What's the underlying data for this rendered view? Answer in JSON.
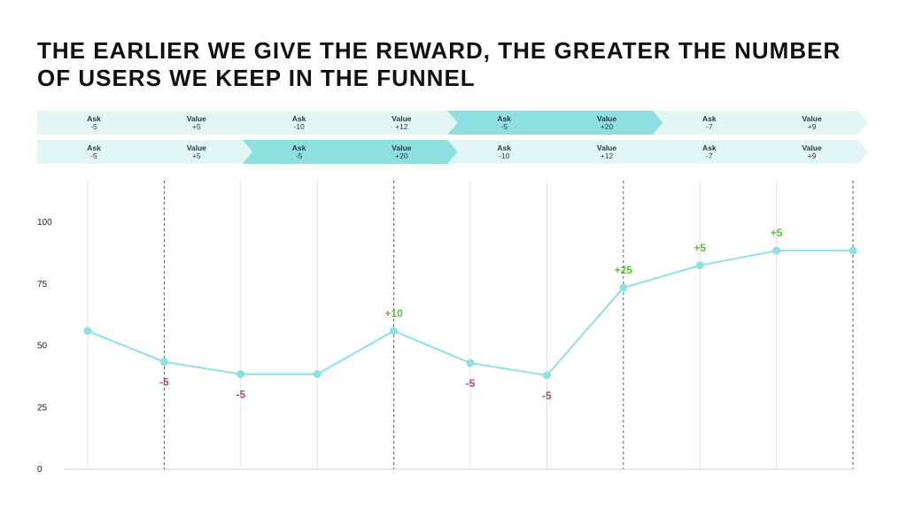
{
  "title_lines": [
    "THE EARLIER WE GIVE THE REWARD, THE GREATER THE NUMBER",
    "OF USERS WE KEEP IN THE FUNNEL"
  ],
  "rows": [
    [
      {
        "label": "Ask",
        "value": "-5",
        "highlight": false
      },
      {
        "label": "Value",
        "value": "+5",
        "highlight": false
      },
      {
        "label": "Ask",
        "value": "-10",
        "highlight": false
      },
      {
        "label": "Value",
        "value": "+12",
        "highlight": false
      },
      {
        "label": "Ask",
        "value": "-5",
        "highlight": true
      },
      {
        "label": "Value",
        "value": "+20",
        "highlight": true
      },
      {
        "label": "Ask",
        "value": "-7",
        "highlight": false
      },
      {
        "label": "Value",
        "value": "+9",
        "highlight": false
      }
    ],
    [
      {
        "label": "Ask",
        "value": "-5",
        "highlight": false
      },
      {
        "label": "Value",
        "value": "+5",
        "highlight": false
      },
      {
        "label": "Ask",
        "value": "-5",
        "highlight": true
      },
      {
        "label": "Value",
        "value": "+20",
        "highlight": true
      },
      {
        "label": "Ask",
        "value": "-10",
        "highlight": false
      },
      {
        "label": "Value",
        "value": "+12",
        "highlight": false
      },
      {
        "label": "Ask",
        "value": "-7",
        "highlight": false
      },
      {
        "label": "Value",
        "value": "+9",
        "highlight": false
      }
    ]
  ],
  "colors": {
    "chevron_light": "#e3f6f6",
    "chevron_dark": "#8ee0e0",
    "line": "#8fe0e0",
    "positive": "#5cbf3a",
    "negative": "#b8456a",
    "grid": "#e2e2e2",
    "dashed": "#555555"
  },
  "chart_data": {
    "type": "line",
    "x": [
      1,
      2,
      3,
      4,
      5,
      6,
      7,
      8,
      9,
      10,
      11
    ],
    "series": [
      {
        "values": [
          56,
          43.5,
          38.5,
          38.5,
          56,
          43,
          38,
          73.5,
          82.5,
          88.5,
          88.5
        ]
      }
    ],
    "annotations": [
      "",
      "-5",
      "-5",
      "",
      "+10",
      "-5",
      "-5",
      "+25",
      "+5",
      "+5",
      ""
    ],
    "dashed_x": [
      2,
      5,
      8,
      11
    ],
    "yticks": [
      0,
      25,
      50,
      75,
      100
    ],
    "ylim": [
      0,
      100
    ],
    "grid": true
  }
}
